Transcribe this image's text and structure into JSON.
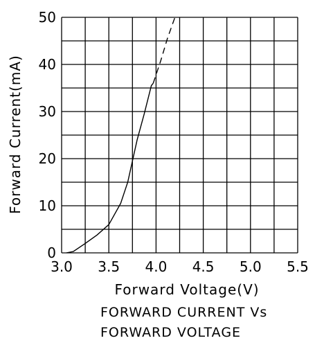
{
  "chart_data": {
    "type": "line",
    "title_lines": [
      "FORWARD CURRENT Vs",
      "FORWARD VOLTAGE"
    ],
    "xlabel": "Forward Voltage(V)",
    "ylabel": "Forward Current(mA)",
    "xlim": [
      3.0,
      5.5
    ],
    "ylim": [
      0,
      50
    ],
    "x_ticks": [
      "3.0",
      "3.5",
      "4.0",
      "4.5",
      "5.0",
      "5.5"
    ],
    "y_ticks": [
      "0",
      "10",
      "20",
      "30",
      "40",
      "50"
    ],
    "grid": true,
    "series": [
      {
        "style": "solid",
        "points": [
          [
            3.05,
            0
          ],
          [
            3.125,
            0.3
          ],
          [
            3.25,
            2
          ],
          [
            3.375,
            3.8
          ],
          [
            3.5,
            6
          ],
          [
            3.625,
            10.5
          ],
          [
            3.7,
            15
          ],
          [
            3.75,
            19.5
          ],
          [
            3.8,
            24
          ],
          [
            3.875,
            29.5
          ],
          [
            3.95,
            35.5
          ],
          [
            3.97,
            36
          ]
        ]
      },
      {
        "style": "dashed",
        "points": [
          [
            3.97,
            36
          ],
          [
            4.05,
            40.8
          ],
          [
            4.12,
            45.5
          ],
          [
            4.2,
            50
          ]
        ]
      }
    ]
  }
}
